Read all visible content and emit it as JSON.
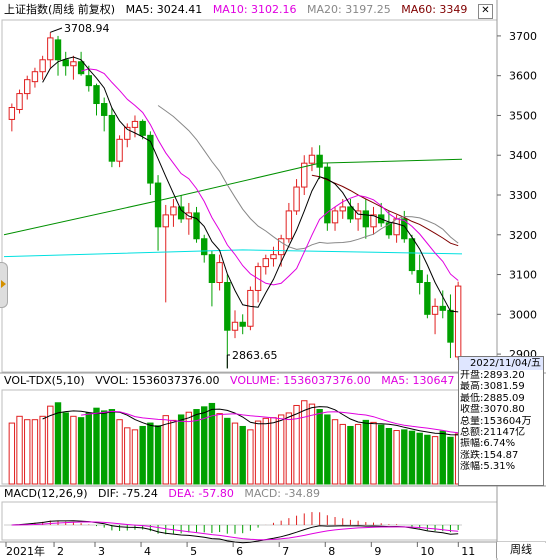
{
  "price_legend": {
    "title": "上证指数(周线 前复权)",
    "ma5": "MA5: 3024.41",
    "ma10": "MA10: 3102.16",
    "ma20": "MA20: 3197.25",
    "ma60": "MA60: 3349",
    "close": "✕"
  },
  "volume_legend": {
    "title": "VOL-TDX(5,10)",
    "vvol": "VVOL: 1536037376.00",
    "volume": "VOLUME: 1536037376.00",
    "ma5": "MA5: 130647"
  },
  "macd_legend": {
    "title": "MACD(12,26,9)",
    "dif": "DIF: -75.24",
    "dea": "DEA: -57.80",
    "macd": "MACD: -34.89"
  },
  "info": {
    "date": "2022/11/04/五",
    "rows": [
      {
        "label": "开盘:",
        "value": "2893.20"
      },
      {
        "label": "最高:",
        "value": "3081.59"
      },
      {
        "label": "最低:",
        "value": "2885.09"
      },
      {
        "label": "收盘:",
        "value": "3070.80"
      },
      {
        "label": "总量:",
        "value": "153604万"
      },
      {
        "label": "总额:",
        "value": "21147亿"
      },
      {
        "label": "振幅:",
        "value": "6.74%"
      },
      {
        "label": "涨跌:",
        "value": "154.87"
      },
      {
        "label": "涨幅:",
        "value": "5.31%"
      }
    ]
  },
  "annotations": {
    "high": "3708.94",
    "low": "2863.65"
  },
  "period_button": "周线",
  "colors": {
    "up": "#e02020",
    "down": "#00a000",
    "ma5": "#000000",
    "ma10": "#e000e0",
    "ma20": "#888888",
    "ma60": "#800000",
    "long_green": "#009000",
    "cyan": "#00e0e0"
  },
  "chart_data": {
    "type": "candlestick",
    "y_axis": {
      "ticks": [
        2900,
        3000,
        3100,
        3200,
        3300,
        3400,
        3500,
        3600,
        3700
      ]
    },
    "x_axis": {
      "labels": [
        "2021年",
        "2",
        "3",
        "4",
        "5",
        "6",
        "7",
        "8",
        "9",
        "10",
        "11"
      ]
    },
    "candles": [
      [
        3490,
        3530,
        3460,
        3520
      ],
      [
        3515,
        3565,
        3505,
        3555
      ],
      [
        3555,
        3600,
        3540,
        3590
      ],
      [
        3585,
        3620,
        3570,
        3610
      ],
      [
        3610,
        3650,
        3590,
        3640
      ],
      [
        3640,
        3709,
        3620,
        3695
      ],
      [
        3690,
        3700,
        3600,
        3640
      ],
      [
        3640,
        3660,
        3600,
        3625
      ],
      [
        3625,
        3650,
        3590,
        3635
      ],
      [
        3635,
        3660,
        3600,
        3605
      ],
      [
        3600,
        3625,
        3560,
        3575
      ],
      [
        3575,
        3580,
        3500,
        3530
      ],
      [
        3530,
        3545,
        3460,
        3500
      ],
      [
        3500,
        3520,
        3370,
        3385
      ],
      [
        3385,
        3450,
        3370,
        3440
      ],
      [
        3440,
        3480,
        3420,
        3470
      ],
      [
        3470,
        3500,
        3445,
        3485
      ],
      [
        3485,
        3490,
        3440,
        3450
      ],
      [
        3450,
        3460,
        3300,
        3330
      ],
      [
        3330,
        3350,
        3160,
        3220
      ],
      [
        3220,
        3275,
        3030,
        3250
      ],
      [
        3250,
        3290,
        3220,
        3270
      ],
      [
        3270,
        3300,
        3230,
        3240
      ],
      [
        3240,
        3280,
        3200,
        3255
      ],
      [
        3255,
        3270,
        3180,
        3190
      ],
      [
        3190,
        3200,
        3130,
        3150
      ],
      [
        3150,
        3160,
        3020,
        3080
      ],
      [
        3080,
        3150,
        3060,
        3130
      ],
      [
        3080,
        3100,
        2864,
        2960
      ],
      [
        2960,
        3010,
        2940,
        2980
      ],
      [
        2980,
        3000,
        2950,
        2970
      ],
      [
        2970,
        3070,
        2960,
        3060
      ],
      [
        3060,
        3130,
        3030,
        3120
      ],
      [
        3120,
        3150,
        3100,
        3140
      ],
      [
        3140,
        3170,
        3120,
        3150
      ],
      [
        3150,
        3200,
        3120,
        3190
      ],
      [
        3190,
        3280,
        3180,
        3260
      ],
      [
        3260,
        3340,
        3250,
        3320
      ],
      [
        3320,
        3400,
        3300,
        3380
      ],
      [
        3380,
        3420,
        3360,
        3400
      ],
      [
        3400,
        3425,
        3340,
        3370
      ],
      [
        3370,
        3380,
        3210,
        3230
      ],
      [
        3230,
        3270,
        3210,
        3260
      ],
      [
        3260,
        3290,
        3240,
        3270
      ],
      [
        3270,
        3290,
        3230,
        3240
      ],
      [
        3240,
        3280,
        3210,
        3260
      ],
      [
        3260,
        3290,
        3190,
        3220
      ],
      [
        3220,
        3270,
        3200,
        3250
      ],
      [
        3250,
        3280,
        3220,
        3230
      ],
      [
        3230,
        3260,
        3190,
        3200
      ],
      [
        3200,
        3250,
        3180,
        3240
      ],
      [
        3240,
        3260,
        3180,
        3190
      ],
      [
        3190,
        3200,
        3100,
        3110
      ],
      [
        3110,
        3150,
        3050,
        3080
      ],
      [
        3080,
        3100,
        2990,
        3000
      ],
      [
        3000,
        3040,
        2950,
        3020
      ],
      [
        3020,
        3060,
        2990,
        3010
      ],
      [
        3010,
        3050,
        2890,
        2930
      ],
      [
        2893,
        3082,
        2885,
        3071
      ]
    ],
    "volume": [
      9000,
      10000,
      9500,
      9500,
      10000,
      11500,
      12000,
      10500,
      10000,
      9800,
      10500,
      11200,
      10800,
      11000,
      9500,
      8300,
      8000,
      8500,
      9000,
      8600,
      10100,
      9400,
      10200,
      10600,
      11000,
      11400,
      11900,
      10400,
      9700,
      9000,
      8500,
      8000,
      9300,
      9700,
      9800,
      10200,
      10500,
      11600,
      12300,
      11800,
      11000,
      10200,
      9500,
      8800,
      8500,
      8800,
      9400,
      9100,
      8700,
      8200,
      7900,
      8000,
      7800,
      7500,
      7200,
      7000,
      7800,
      6900,
      7400
    ]
  }
}
